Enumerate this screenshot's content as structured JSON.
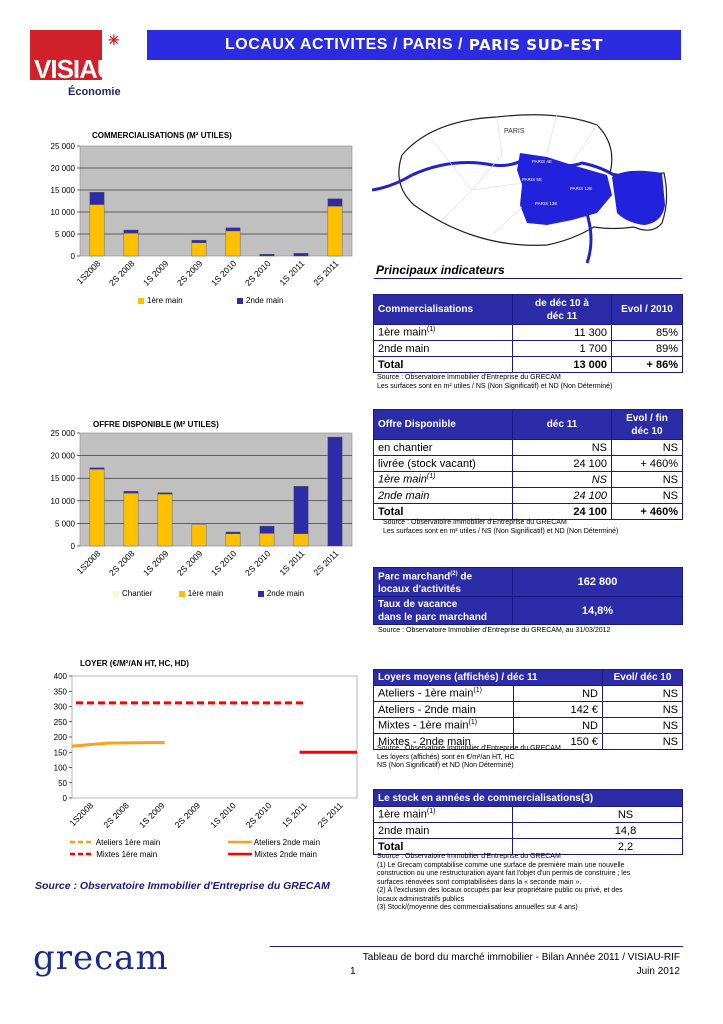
{
  "header": {
    "logo_text": "VISIAU",
    "logo_sub": "Économie",
    "title_main": "LOCAUX ACTIVITES / PARIS /",
    "title_sub": "PARIS SUD-EST"
  },
  "map": {
    "label_paris": "PARIS",
    "labels": [
      "PARIS 4E",
      "PARIS 5E",
      "PARIS 12E",
      "PARIS 13E"
    ]
  },
  "colors": {
    "blue": "#2222cc",
    "dark_blue": "#2c2ca8",
    "yellow": "#ffc000",
    "red": "#ff0000",
    "orange": "#f7a21b",
    "plot_bg": "#c0c0c0"
  },
  "chart_data": [
    {
      "type": "bar",
      "title": "COMMERCIALISATIONS (M² UTILES)",
      "categories": [
        "1S2008",
        "2S 2008",
        "1S 2009",
        "2S 2009",
        "1S 2010",
        "2S 2010",
        "1S 2011",
        "2S 2011"
      ],
      "series": [
        {
          "name": "1ère main",
          "values": [
            11700,
            5200,
            0,
            3000,
            5700,
            0,
            0,
            11300
          ]
        },
        {
          "name": "2nde main",
          "values": [
            2800,
            700,
            0,
            600,
            700,
            400,
            600,
            1700
          ]
        }
      ],
      "ylim": [
        0,
        25000
      ],
      "yticks": [
        "0",
        "5 000",
        "10 000",
        "15 000",
        "20 000",
        "25 000"
      ],
      "grid": true,
      "legend": "bottom"
    },
    {
      "type": "bar",
      "title": "OFFRE DISPONIBLE (M² UTILES)",
      "categories": [
        "1S2008",
        "2S 2008",
        "1S 2009",
        "2S 2009",
        "1S 2010",
        "2S 2010",
        "1S 2011",
        "2S 2011"
      ],
      "series": [
        {
          "name": "Chantier",
          "values": [
            0,
            0,
            0,
            0,
            0,
            0,
            0,
            0
          ]
        },
        {
          "name": "1ère main",
          "values": [
            17000,
            11700,
            11500,
            4700,
            2700,
            2800,
            2700,
            0
          ]
        },
        {
          "name": "2nde main",
          "values": [
            300,
            400,
            300,
            0,
            400,
            1600,
            10500,
            24100
          ]
        }
      ],
      "ylim": [
        0,
        25000
      ],
      "yticks": [
        "0",
        "5 000",
        "10 000",
        "15 000",
        "20 000",
        "25 000"
      ],
      "grid": true,
      "legend": "bottom"
    },
    {
      "type": "line",
      "title": "LOYER (€/M²/AN HT, HC, HD)",
      "categories": [
        "1S2008",
        "2S 2008",
        "1S 2009",
        "2S 2009",
        "1S 2010",
        "2S 2010",
        "1S 2011",
        "2S 2011"
      ],
      "series": [
        {
          "name": "Ateliers 1ère main",
          "values": [
            null,
            null,
            null,
            null,
            null,
            null,
            null,
            null
          ],
          "style": "dashed",
          "color": "#f7a21b"
        },
        {
          "name": "Ateliers 2nde main",
          "values": [
            172,
            180,
            182,
            null,
            null,
            null,
            null,
            null
          ],
          "style": "solid",
          "color": "#f7a21b"
        },
        {
          "name": "Mixtes 1ère main",
          "values": [
            312,
            312,
            312,
            312,
            312,
            312,
            312,
            null
          ],
          "style": "dashed",
          "color": "#ff0000"
        },
        {
          "name": "Mixtes 2nde main",
          "values": [
            null,
            null,
            null,
            null,
            null,
            null,
            150,
            150
          ],
          "style": "solid",
          "color": "#ff0000"
        }
      ],
      "ylim": [
        0,
        400
      ],
      "yticks": [
        "0",
        "50",
        "100",
        "150",
        "200",
        "250",
        "300",
        "350",
        "400"
      ],
      "grid": false,
      "legend": "bottom"
    }
  ],
  "indicators": {
    "heading": "Principaux indicateurs",
    "commercialisations": {
      "col1": "Commercialisations",
      "col2a": "de déc 10 à",
      "col2b": "déc 11",
      "col3": "Evol / 2010",
      "rows": [
        {
          "label": "1ère main",
          "sup": "(1)",
          "value": "11 300",
          "evol": "85%"
        },
        {
          "label": "2nde main",
          "sup": "",
          "value": "1 700",
          "evol": "89%"
        },
        {
          "label": "Total",
          "sup": "",
          "value": "13 000",
          "evol": "+ 86%"
        }
      ],
      "source1": "Source : Observatoire Immobilier d'Entreprise du GRECAM",
      "source2": "Les surfaces sont en m² utiles / NS (Non Significatif) et ND (Non Déterminé)"
    },
    "offre": {
      "col1": "Offre Disponible",
      "col2": "déc 11",
      "col3a": "Evol / fin",
      "col3b": "déc 10",
      "rows": [
        {
          "label": "en chantier",
          "sup": "",
          "value": "NS",
          "evol": "NS"
        },
        {
          "label": "livrée (stock vacant)",
          "sup": "",
          "value": "24 100",
          "evol": "+ 460%"
        },
        {
          "label": "1ère main",
          "sup": "(1)",
          "value": "NS",
          "evol": "NS"
        },
        {
          "label": "2nde main",
          "sup": "",
          "value": "24 100",
          "evol": "NS"
        },
        {
          "label": "Total",
          "sup": "",
          "value": "24 100",
          "evol": "+ 460%"
        }
      ],
      "source1": "Source : Observatoire Immobilier d'Entreprise du GRECAM",
      "source2": "Les surfaces sont en m² utiles / NS (Non Significatif) et ND (Non Déterminé)"
    },
    "parc": {
      "label1a": "Parc marchand",
      "label1sup": "(2)",
      "label1b": " de",
      "label1c": "locaux d'activités",
      "value1": "162 800",
      "label2a": "Taux de vacance",
      "label2b": "dans le parc marchand",
      "value2": "14,8%",
      "source": "Source : Observatoire Immobilier d'Entreprise du GRECAM, au 31/03/2012"
    },
    "loyers": {
      "col1": "Loyers moyens (affichés) / déc 11",
      "col2": "Evol/ déc 10",
      "rows": [
        {
          "label": "Ateliers - 1ère main",
          "sup": "(1)",
          "value": "ND",
          "evol": "NS"
        },
        {
          "label": "Ateliers - 2nde main",
          "sup": "",
          "value": "142 €",
          "evol": "NS"
        },
        {
          "label": "Mixtes - 1ère main",
          "sup": "(1)",
          "value": "ND",
          "evol": "NS"
        },
        {
          "label": "Mixtes - 2nde main",
          "sup": "",
          "value": "150 €",
          "evol": "NS"
        }
      ],
      "source1": "Source : Observatoire Immobilier d'Entreprise du GRECAM",
      "source2": "Les loyers (affichés) sont en €/m²/an HT, HC",
      "source3": "NS (Non Significatif) et ND (Non Déterminé)"
    },
    "stock": {
      "col1": "Le stock en années de commercialisations(3)",
      "rows": [
        {
          "label": "1ère main",
          "sup": "(1)",
          "value": "NS"
        },
        {
          "label": "2nde  main",
          "sup": "",
          "value": "14,8"
        },
        {
          "label": "Total",
          "sup": "",
          "value": "2,2"
        }
      ],
      "notes": [
        "Source : Observatoire Immobilier d'Entreprise du GRECAM",
        "(1) Le Grecam comptabilise comme une surface de première main une nouvelle",
        "construction ou une restructuration ayant fait l'objet d'un permis de construire ; les",
        "surfaces rénovées sont comptabilisées dans la « seconde main ».",
        "(2) À l'exclusion des locaux occupés par leur propriétaire public ou privé, et des",
        "locaux administratifs publics",
        "(3) Stock/(moyenne des commercialisations annuelles sur 4 ans)"
      ]
    }
  },
  "footer": {
    "source_left": "Source : Observatoire Immobilier d'Entreprise du GRECAM",
    "brand": "grecam",
    "right_line1": "Tableau de bord du marché immobilier - Bilan Année 2011 / VISIAU-RIF",
    "page": "1",
    "date": "Juin 2012"
  }
}
